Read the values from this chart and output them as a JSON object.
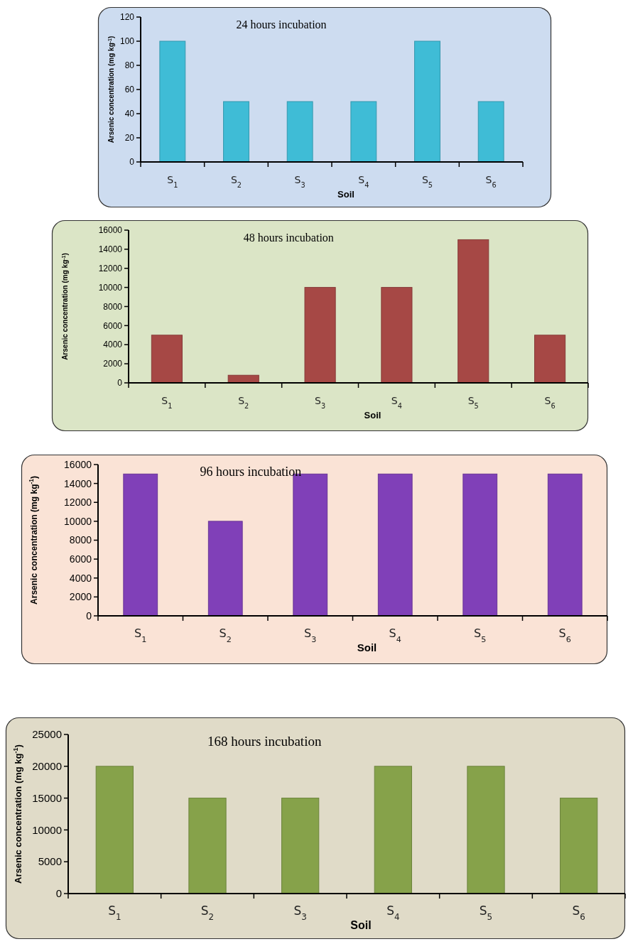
{
  "chart_data": [
    {
      "type": "bar",
      "title": "24 hours  incubation",
      "xlabel": "Soil",
      "ylabel": "Arsenic concentration (mg kg$^{-1}$)",
      "categories": [
        "S$_{1}$",
        "S$_{2}$",
        "S$_{3}$",
        "S$_{4}$",
        "S$_{5}$",
        "S$_{6}$"
      ],
      "values": [
        100,
        50,
        50,
        50,
        100,
        50
      ],
      "color": "#3fbcd6",
      "ylim": [
        0,
        120
      ],
      "yticks": [
        0,
        20,
        40,
        60,
        80,
        100,
        120
      ],
      "grid": false
    },
    {
      "type": "bar",
      "title": "48 hours incubation",
      "xlabel": "Soil",
      "ylabel": "Arsenic concentration (mg kg$^{-1}$)",
      "categories": [
        "S$_{1}$",
        "S$_{2}$",
        "S$_{3}$",
        "S$_{4}$",
        "S$_{5}$",
        "S$_{6}$"
      ],
      "values": [
        5000,
        800,
        10000,
        10000,
        15000,
        5000
      ],
      "color": "#a64845",
      "ylim": [
        0,
        16000
      ],
      "yticks": [
        0,
        2000,
        4000,
        6000,
        8000,
        10000,
        12000,
        14000,
        16000
      ],
      "grid": false
    },
    {
      "type": "bar",
      "title": "96 hours  incubation",
      "xlabel": "Soil",
      "ylabel": "Arsenic concentration (mg kg$^{-1}$)",
      "categories": [
        "S$_{1}$",
        "S$_{2}$",
        "S$_{3}$",
        "S$_{4}$",
        "S$_{5}$",
        "S$_{6}$"
      ],
      "values": [
        15000,
        10000,
        15000,
        15000,
        15000,
        15000
      ],
      "color": "#8040b8",
      "ylim": [
        0,
        16000
      ],
      "yticks": [
        0,
        2000,
        4000,
        6000,
        8000,
        10000,
        12000,
        14000,
        16000
      ],
      "grid": false
    },
    {
      "type": "bar",
      "title": "168 hours  incubation",
      "xlabel": "Soil",
      "ylabel": "Arsenic concentration (mg kg$^{-1}$)",
      "categories": [
        "S$_{1}$",
        "S$_{2}$",
        "S$_{3}$",
        "S$_{4}$",
        "S$_{5}$",
        "S$_{6}$"
      ],
      "values": [
        20000,
        15000,
        15000,
        20000,
        20000,
        15000
      ],
      "color": "#86a24a",
      "ylim": [
        0,
        25000
      ],
      "yticks": [
        0,
        5000,
        10000,
        15000,
        20000,
        25000
      ],
      "grid": false
    }
  ]
}
